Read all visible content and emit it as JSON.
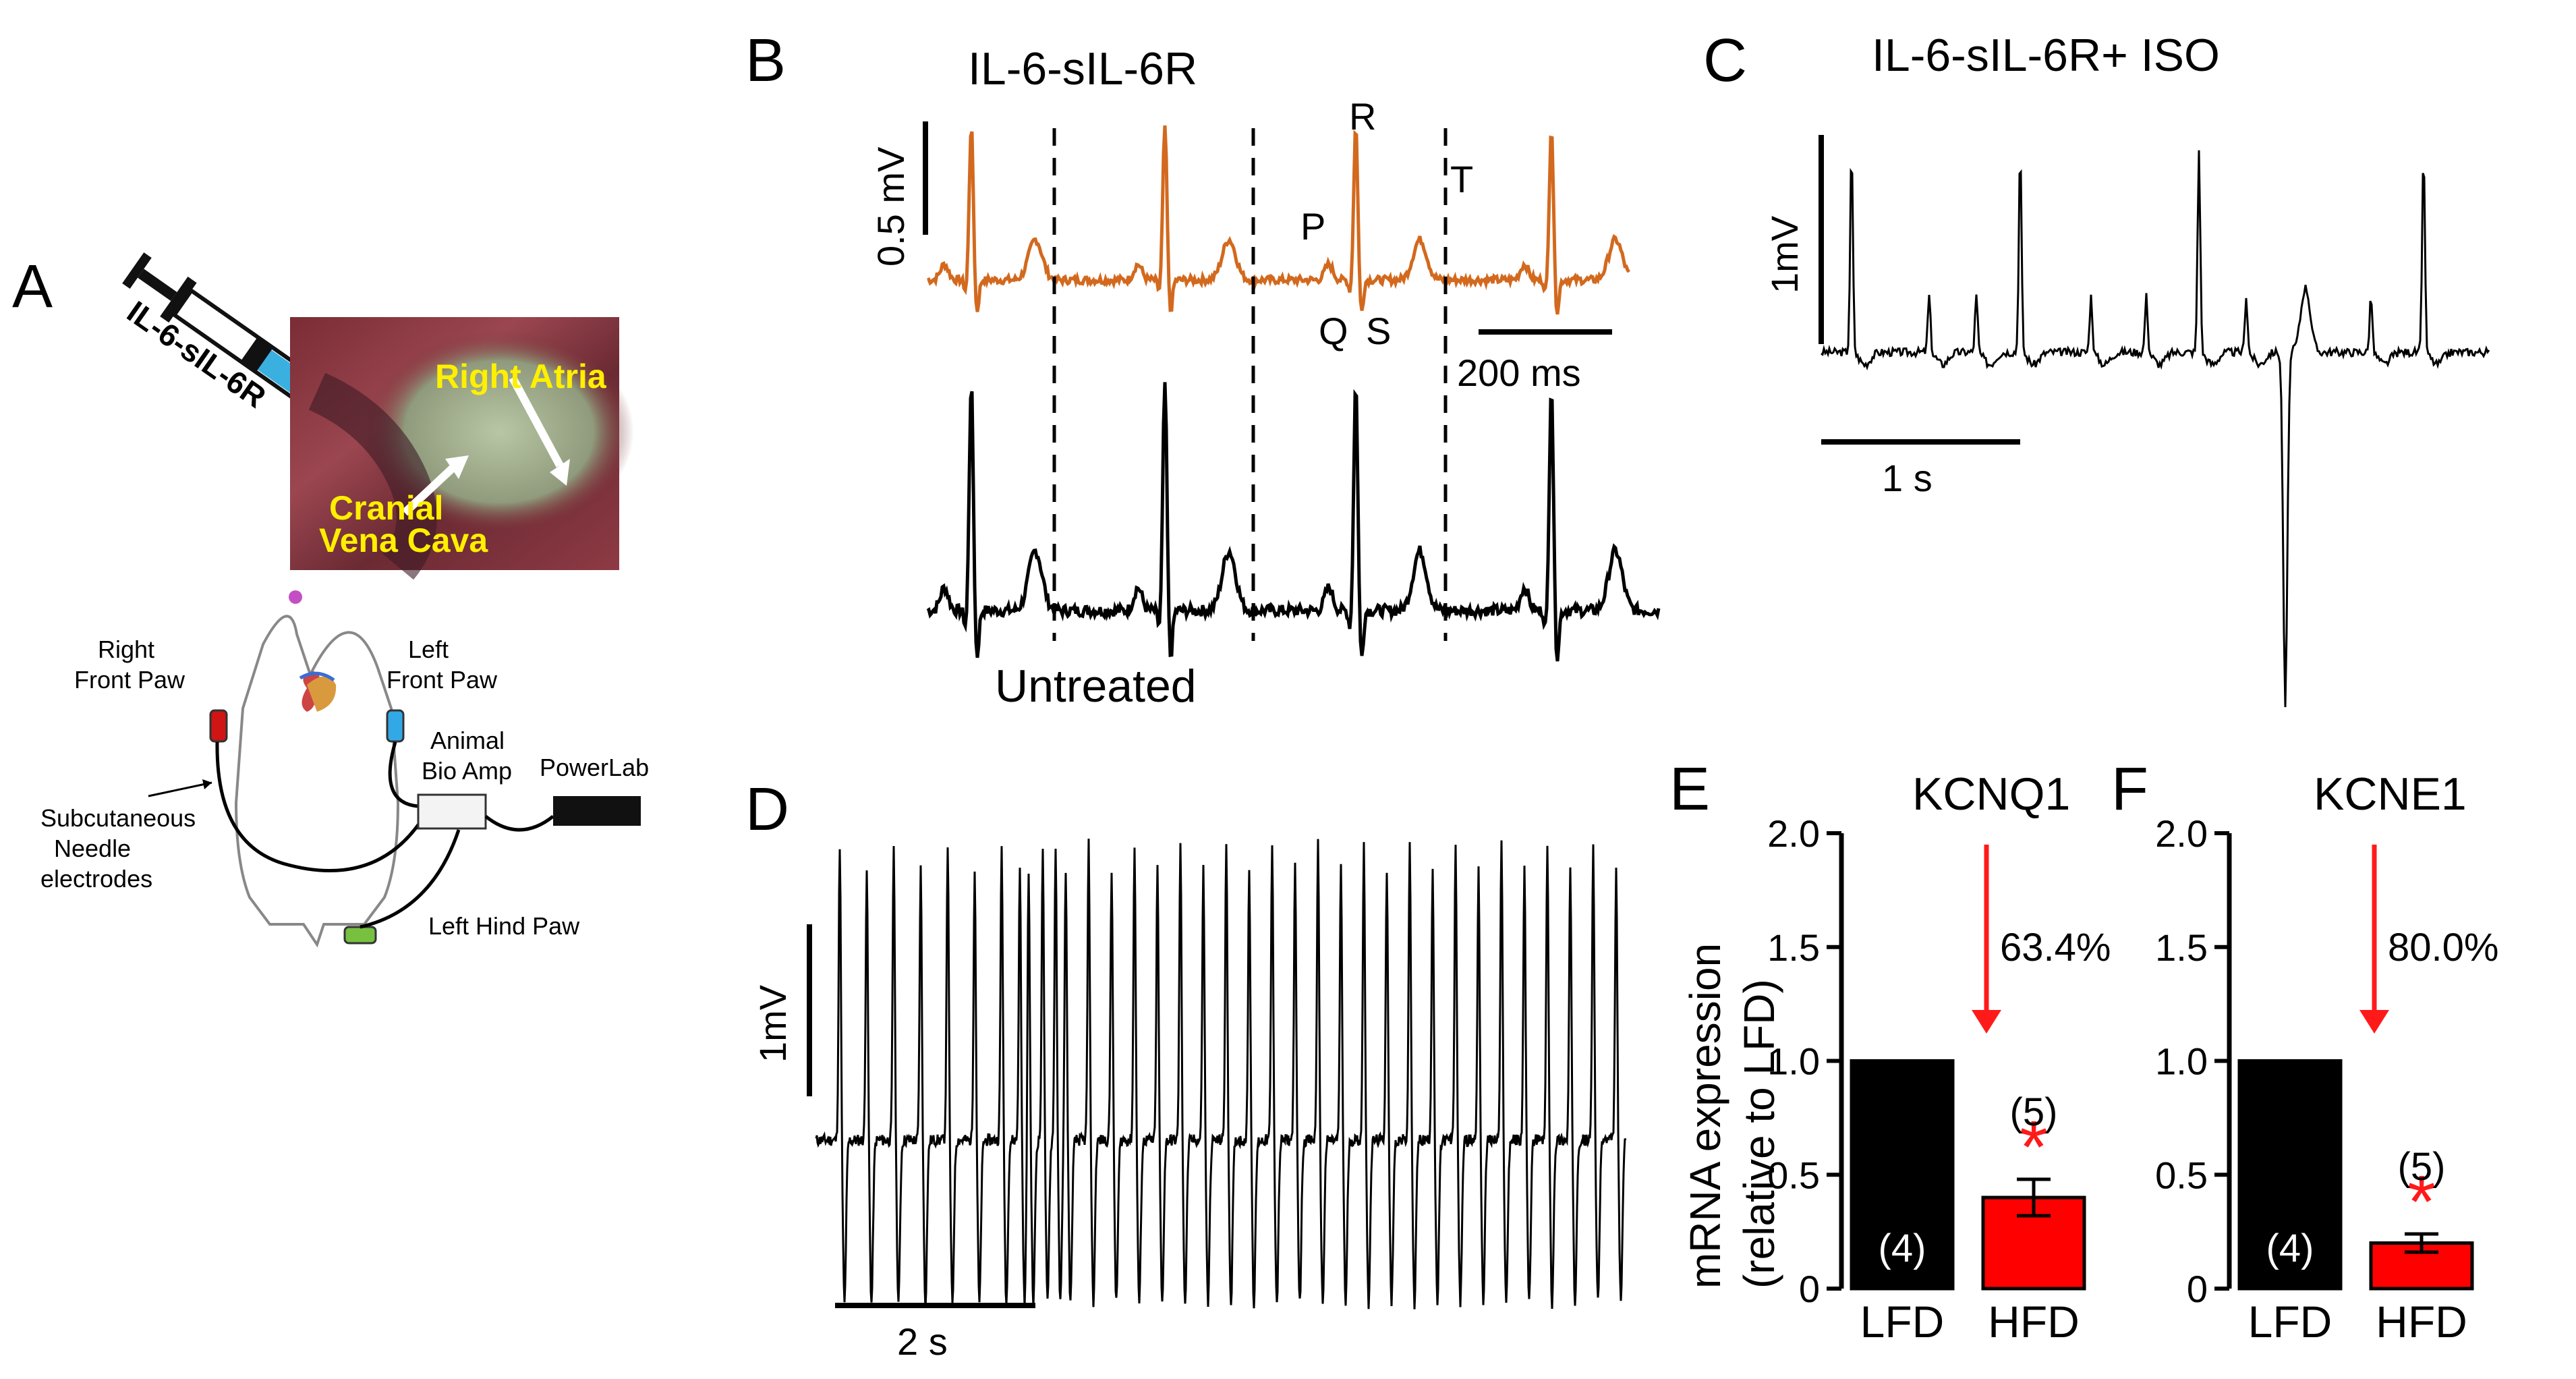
{
  "panels": {
    "a": "A",
    "b": "B",
    "c": "C",
    "d": "D",
    "e": "E",
    "f": "F"
  },
  "panel_a": {
    "syringe_label": "IL-6-sIL-6R",
    "photo_label_atria": "Right Atria",
    "photo_label_cava_line1": "Cranial",
    "photo_label_cava_line2": "Vena Cava",
    "right_front_paw_line1": "Right",
    "right_front_paw_line2": "Front Paw",
    "left_front_paw_line1": "Left",
    "left_front_paw_line2": "Front Paw",
    "amp_line1": "Animal",
    "amp_line2": "Bio Amp",
    "powerlab": "PowerLab",
    "needle_line1": "Subcutaneous",
    "needle_line2": "Needle",
    "needle_line3": "electrodes",
    "left_hind_paw": "Left Hind Paw"
  },
  "panel_b": {
    "title": "IL-6-sIL-6R",
    "scale_v": "0.5 mV",
    "scale_t": "200 ms",
    "wave_p": "P",
    "wave_q": "Q",
    "wave_r": "R",
    "wave_s": "S",
    "wave_t": "T",
    "untreated": "Untreated",
    "trace_color": "#d2691e"
  },
  "panel_c": {
    "title": "IL-6-sIL-6R+ ISO",
    "scale_v": "1mV",
    "scale_t": "1 s"
  },
  "panel_d": {
    "scale_v": "1mV",
    "scale_t": "2 s"
  },
  "chart_data": [
    {
      "type": "bar",
      "panel": "E",
      "title": "KCNQ1",
      "ylabel_line1": "mRNA expression",
      "ylabel_line2": "(relative to LFD)",
      "categories": [
        "LFD",
        "HFD"
      ],
      "values": [
        1.0,
        0.4
      ],
      "errors": [
        0,
        0.08
      ],
      "n_labels": [
        "(4)",
        "(5)"
      ],
      "colors": [
        "#000000",
        "#ff0000"
      ],
      "ylim": [
        0,
        2.0
      ],
      "yticks": [
        0,
        0.5,
        1.0,
        1.5,
        2.0
      ],
      "ytick_labels": [
        "0",
        "0.5",
        "1.0",
        "1.5",
        "2.0"
      ],
      "reduction_label": "63.4%",
      "significance": "*"
    },
    {
      "type": "bar",
      "panel": "F",
      "title": "KCNE1",
      "categories": [
        "LFD",
        "HFD"
      ],
      "values": [
        1.0,
        0.2
      ],
      "errors": [
        0,
        0.04
      ],
      "n_labels": [
        "(4)",
        "(5)"
      ],
      "colors": [
        "#000000",
        "#ff0000"
      ],
      "ylim": [
        0,
        2.0
      ],
      "yticks": [
        0,
        0.5,
        1.0,
        1.5,
        2.0
      ],
      "ytick_labels": [
        "0",
        "0.5",
        "1.0",
        "1.5",
        "2.0"
      ],
      "reduction_label": "80.0%",
      "significance": "*"
    }
  ]
}
